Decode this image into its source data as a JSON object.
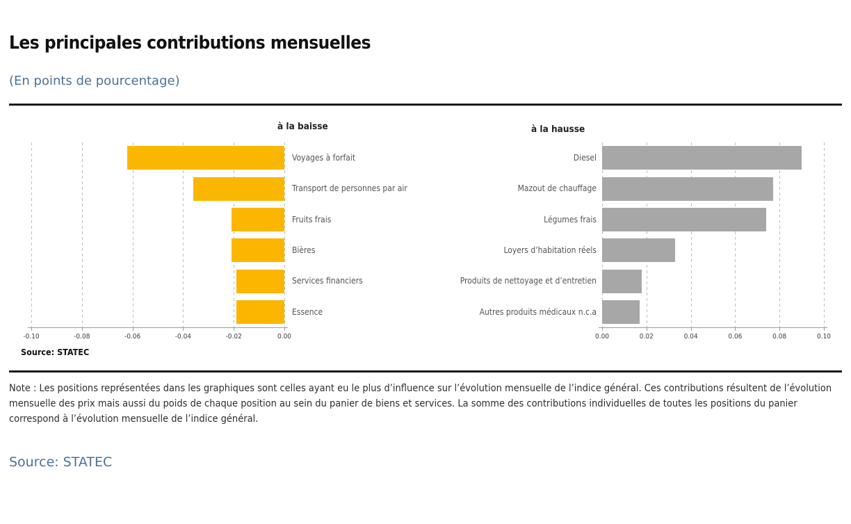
{
  "page": {
    "title": "Les principales contributions mensuelles",
    "subtitle": "(En points de pourcentage)",
    "note": "Note : Les positions représentées dans les graphiques sont celles ayant eu le plus d’influence sur l’évolution mensuelle de l’indice général. Ces contributions résultent de l’évolution mensuelle des prix mais aussi du poids de chaque position au sein du panier de biens et services. La somme des contributions individuelles de toutes les positions du panier correspond à l’évolution mensuelle de l’indice général.",
    "chart_source": "Source: STATEC",
    "source_bottom": "Source: STATEC"
  },
  "colors": {
    "accent_yellow": "#FBB600",
    "bar_gray": "#A7A7A7",
    "subtitle_blue": "#4D7195",
    "separator_black": "#1A1A1A",
    "gridline_gray": "#BDBDBD"
  },
  "chart_data": [
    {
      "type": "bar",
      "orientation": "horizontal",
      "title": "à la baisse",
      "categories": [
        "Voyages à forfait",
        "Transport de personnes par air",
        "Fruits frais",
        "Bières",
        "Services financiers",
        "Essence"
      ],
      "values": [
        -0.062,
        -0.036,
        -0.021,
        -0.021,
        -0.019,
        -0.019
      ],
      "xlim": [
        -0.1,
        0.0
      ],
      "xticks": [
        "-0.10",
        "-0.08",
        "-0.06",
        "-0.04",
        "-0.02",
        "0.00"
      ],
      "bar_color": "#FBB600",
      "grid": "dashed-vertical",
      "legend": "none"
    },
    {
      "type": "bar",
      "orientation": "horizontal",
      "title": "à la hausse",
      "categories": [
        "Diesel",
        "Mazout de chauffage",
        "Légumes frais",
        "Loyers d’habitation réels",
        "Produits de nettoyage et d’entretien",
        "Autres produits médicaux n.c.a"
      ],
      "values": [
        0.09,
        0.077,
        0.074,
        0.033,
        0.018,
        0.017
      ],
      "xlim": [
        0.0,
        0.1
      ],
      "xticks": [
        "0.00",
        "0.02",
        "0.04",
        "0.06",
        "0.08",
        "0.10"
      ],
      "bar_color": "#A7A7A7",
      "grid": "dashed-vertical",
      "legend": "none"
    }
  ]
}
